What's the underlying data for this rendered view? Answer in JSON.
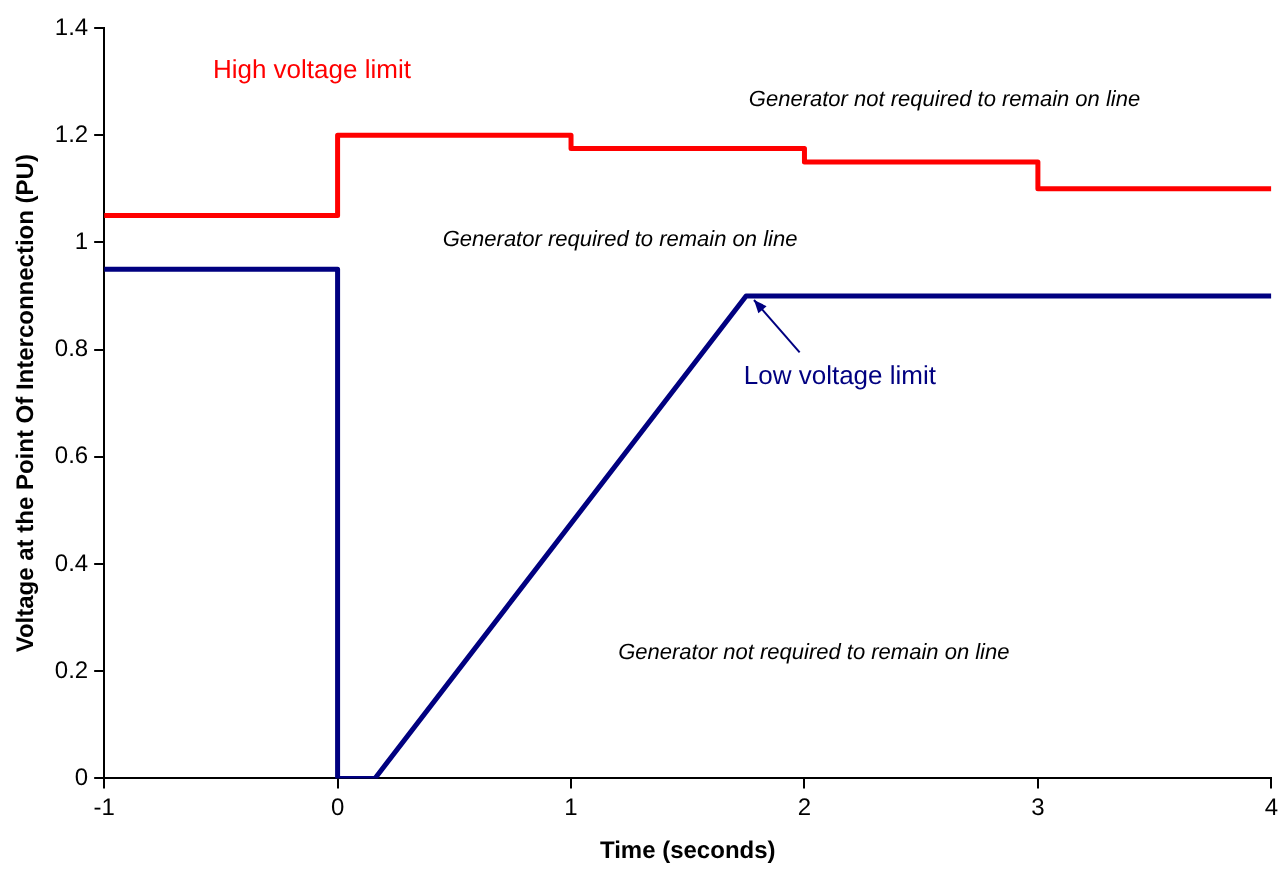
{
  "chart_data": {
    "type": "line",
    "xlabel": "Time (seconds)",
    "ylabel": "Voltage at the Point Of Interconnection (PU)",
    "xlim": [
      -1,
      4
    ],
    "xticks": [
      -1,
      0,
      1,
      2,
      3,
      4
    ],
    "ylim": [
      0,
      1.4
    ],
    "yticks": [
      0,
      0.2,
      0.4,
      0.6,
      0.8,
      1,
      1.2,
      1.4
    ],
    "series": [
      {
        "name": "High voltage limit",
        "color": "#ff0000",
        "x": [
          -1,
          0,
          0,
          1,
          1,
          2,
          2,
          3,
          3,
          4
        ],
        "values": [
          1.05,
          1.05,
          1.2,
          1.2,
          1.175,
          1.175,
          1.15,
          1.15,
          1.1,
          1.1
        ]
      },
      {
        "name": "Low voltage limit",
        "color": "#000080",
        "x": [
          -1,
          0,
          0,
          0.16,
          1.75,
          4
        ],
        "values": [
          0.95,
          0.95,
          0,
          0,
          0.9,
          0.9
        ]
      }
    ],
    "annotations": [
      "Generator not required to remain on line",
      "Generator required to remain on line",
      "Generator not required to remain on line"
    ]
  }
}
